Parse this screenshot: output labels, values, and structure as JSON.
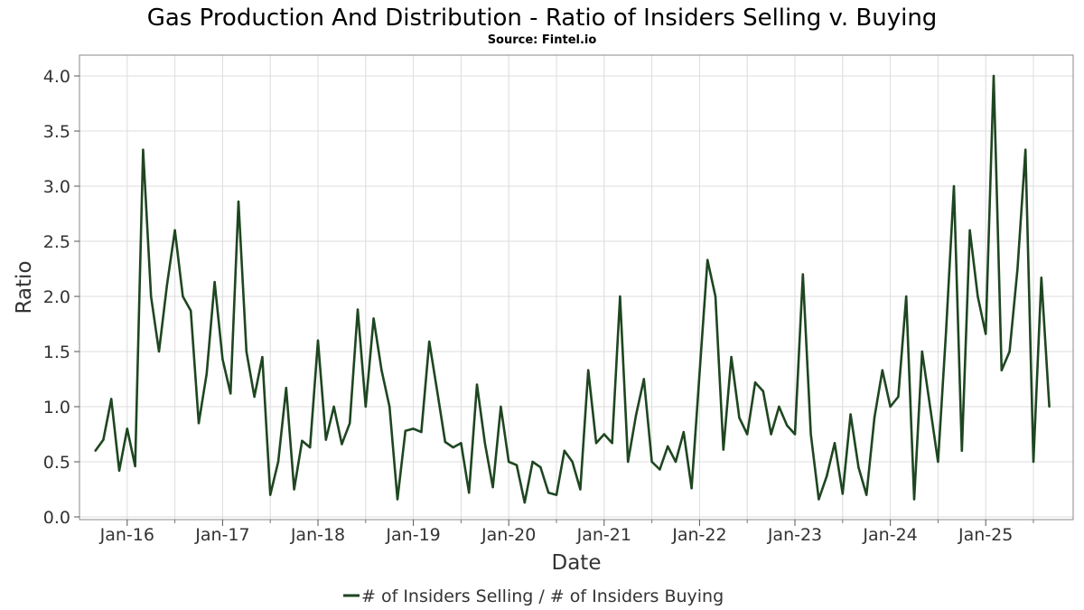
{
  "chart_data": {
    "type": "line",
    "title": "Gas Production And Distribution - Ratio of Insiders Selling v. Buying",
    "subtitle": "Source: Fintel.io",
    "xlabel": "Date",
    "ylabel": "Ratio",
    "ylim": [
      0,
      4.2
    ],
    "y_ticks": [
      "0.0",
      "0.5",
      "1.0",
      "1.5",
      "2.0",
      "2.5",
      "3.0",
      "3.5",
      "4.0"
    ],
    "x_ticks": [
      "Jan-16",
      "Jan-17",
      "Jan-18",
      "Jan-19",
      "Jan-20",
      "Jan-21",
      "Jan-22",
      "Jan-23",
      "Jan-24",
      "Jan-25"
    ],
    "x_range": [
      "2015-07",
      "2025-12"
    ],
    "grid": true,
    "legend_position": "bottom-center",
    "series": [
      {
        "name": "# of Insiders Selling / # of Insiders Buying",
        "color": "#1e4620",
        "points": [
          [
            "2015-09",
            0.6
          ],
          [
            "2015-10",
            0.7
          ],
          [
            "2015-11",
            1.07
          ],
          [
            "2015-12",
            0.42
          ],
          [
            "2016-01",
            0.8
          ],
          [
            "2016-02",
            0.46
          ],
          [
            "2016-03",
            3.33
          ],
          [
            "2016-04",
            2.0
          ],
          [
            "2016-05",
            1.5
          ],
          [
            "2016-06",
            2.1
          ],
          [
            "2016-07",
            2.6
          ],
          [
            "2016-08",
            2.0
          ],
          [
            "2016-09",
            1.87
          ],
          [
            "2016-10",
            0.85
          ],
          [
            "2016-11",
            1.3
          ],
          [
            "2016-12",
            2.13
          ],
          [
            "2017-01",
            1.43
          ],
          [
            "2017-02",
            1.12
          ],
          [
            "2017-03",
            2.86
          ],
          [
            "2017-04",
            1.5
          ],
          [
            "2017-05",
            1.09
          ],
          [
            "2017-06",
            1.45
          ],
          [
            "2017-07",
            0.2
          ],
          [
            "2017-08",
            0.5
          ],
          [
            "2017-09",
            1.17
          ],
          [
            "2017-10",
            0.25
          ],
          [
            "2017-11",
            0.69
          ],
          [
            "2017-12",
            0.63
          ],
          [
            "2018-01",
            1.6
          ],
          [
            "2018-02",
            0.7
          ],
          [
            "2018-03",
            1.0
          ],
          [
            "2018-04",
            0.66
          ],
          [
            "2018-05",
            0.85
          ],
          [
            "2018-06",
            1.88
          ],
          [
            "2018-07",
            1.0
          ],
          [
            "2018-08",
            1.8
          ],
          [
            "2018-09",
            1.33
          ],
          [
            "2018-10",
            1.0
          ],
          [
            "2018-11",
            0.16
          ],
          [
            "2018-12",
            0.78
          ],
          [
            "2019-01",
            0.8
          ],
          [
            "2019-02",
            0.77
          ],
          [
            "2019-03",
            1.59
          ],
          [
            "2019-04",
            1.14
          ],
          [
            "2019-05",
            0.68
          ],
          [
            "2019-06",
            0.63
          ],
          [
            "2019-07",
            0.67
          ],
          [
            "2019-08",
            0.22
          ],
          [
            "2019-09",
            1.2
          ],
          [
            "2019-10",
            0.67
          ],
          [
            "2019-11",
            0.27
          ],
          [
            "2019-12",
            1.0
          ],
          [
            "2020-01",
            0.5
          ],
          [
            "2020-02",
            0.47
          ],
          [
            "2020-03",
            0.13
          ],
          [
            "2020-04",
            0.5
          ],
          [
            "2020-05",
            0.45
          ],
          [
            "2020-06",
            0.22
          ],
          [
            "2020-07",
            0.2
          ],
          [
            "2020-08",
            0.6
          ],
          [
            "2020-09",
            0.5
          ],
          [
            "2020-10",
            0.25
          ],
          [
            "2020-11",
            1.33
          ],
          [
            "2020-12",
            0.67
          ],
          [
            "2021-01",
            0.75
          ],
          [
            "2021-02",
            0.67
          ],
          [
            "2021-03",
            2.0
          ],
          [
            "2021-04",
            0.5
          ],
          [
            "2021-05",
            0.92
          ],
          [
            "2021-06",
            1.25
          ],
          [
            "2021-07",
            0.5
          ],
          [
            "2021-08",
            0.43
          ],
          [
            "2021-09",
            0.64
          ],
          [
            "2021-10",
            0.5
          ],
          [
            "2021-11",
            0.77
          ],
          [
            "2021-12",
            0.26
          ],
          [
            "2022-01",
            1.3
          ],
          [
            "2022-02",
            2.33
          ],
          [
            "2022-03",
            2.0
          ],
          [
            "2022-04",
            0.61
          ],
          [
            "2022-05",
            1.45
          ],
          [
            "2022-06",
            0.9
          ],
          [
            "2022-07",
            0.75
          ],
          [
            "2022-08",
            1.22
          ],
          [
            "2022-09",
            1.14
          ],
          [
            "2022-10",
            0.75
          ],
          [
            "2022-11",
            1.0
          ],
          [
            "2022-12",
            0.83
          ],
          [
            "2023-01",
            0.75
          ],
          [
            "2023-02",
            2.2
          ],
          [
            "2023-03",
            0.75
          ],
          [
            "2023-04",
            0.16
          ],
          [
            "2023-05",
            0.37
          ],
          [
            "2023-06",
            0.67
          ],
          [
            "2023-07",
            0.21
          ],
          [
            "2023-08",
            0.93
          ],
          [
            "2023-09",
            0.45
          ],
          [
            "2023-10",
            0.2
          ],
          [
            "2023-11",
            0.9
          ],
          [
            "2023-12",
            1.33
          ],
          [
            "2024-01",
            1.0
          ],
          [
            "2024-02",
            1.09
          ],
          [
            "2024-03",
            2.0
          ],
          [
            "2024-04",
            0.16
          ],
          [
            "2024-05",
            1.5
          ],
          [
            "2024-06",
            1.0
          ],
          [
            "2024-07",
            0.5
          ],
          [
            "2024-08",
            1.67
          ],
          [
            "2024-09",
            3.0
          ],
          [
            "2024-10",
            0.6
          ],
          [
            "2024-11",
            2.6
          ],
          [
            "2024-12",
            2.0
          ],
          [
            "2025-01",
            1.66
          ],
          [
            "2025-02",
            4.0
          ],
          [
            "2025-03",
            1.33
          ],
          [
            "2025-04",
            1.5
          ],
          [
            "2025-05",
            2.25
          ],
          [
            "2025-06",
            3.33
          ],
          [
            "2025-07",
            0.5
          ],
          [
            "2025-08",
            2.17
          ],
          [
            "2025-09",
            1.0
          ]
        ]
      }
    ]
  }
}
